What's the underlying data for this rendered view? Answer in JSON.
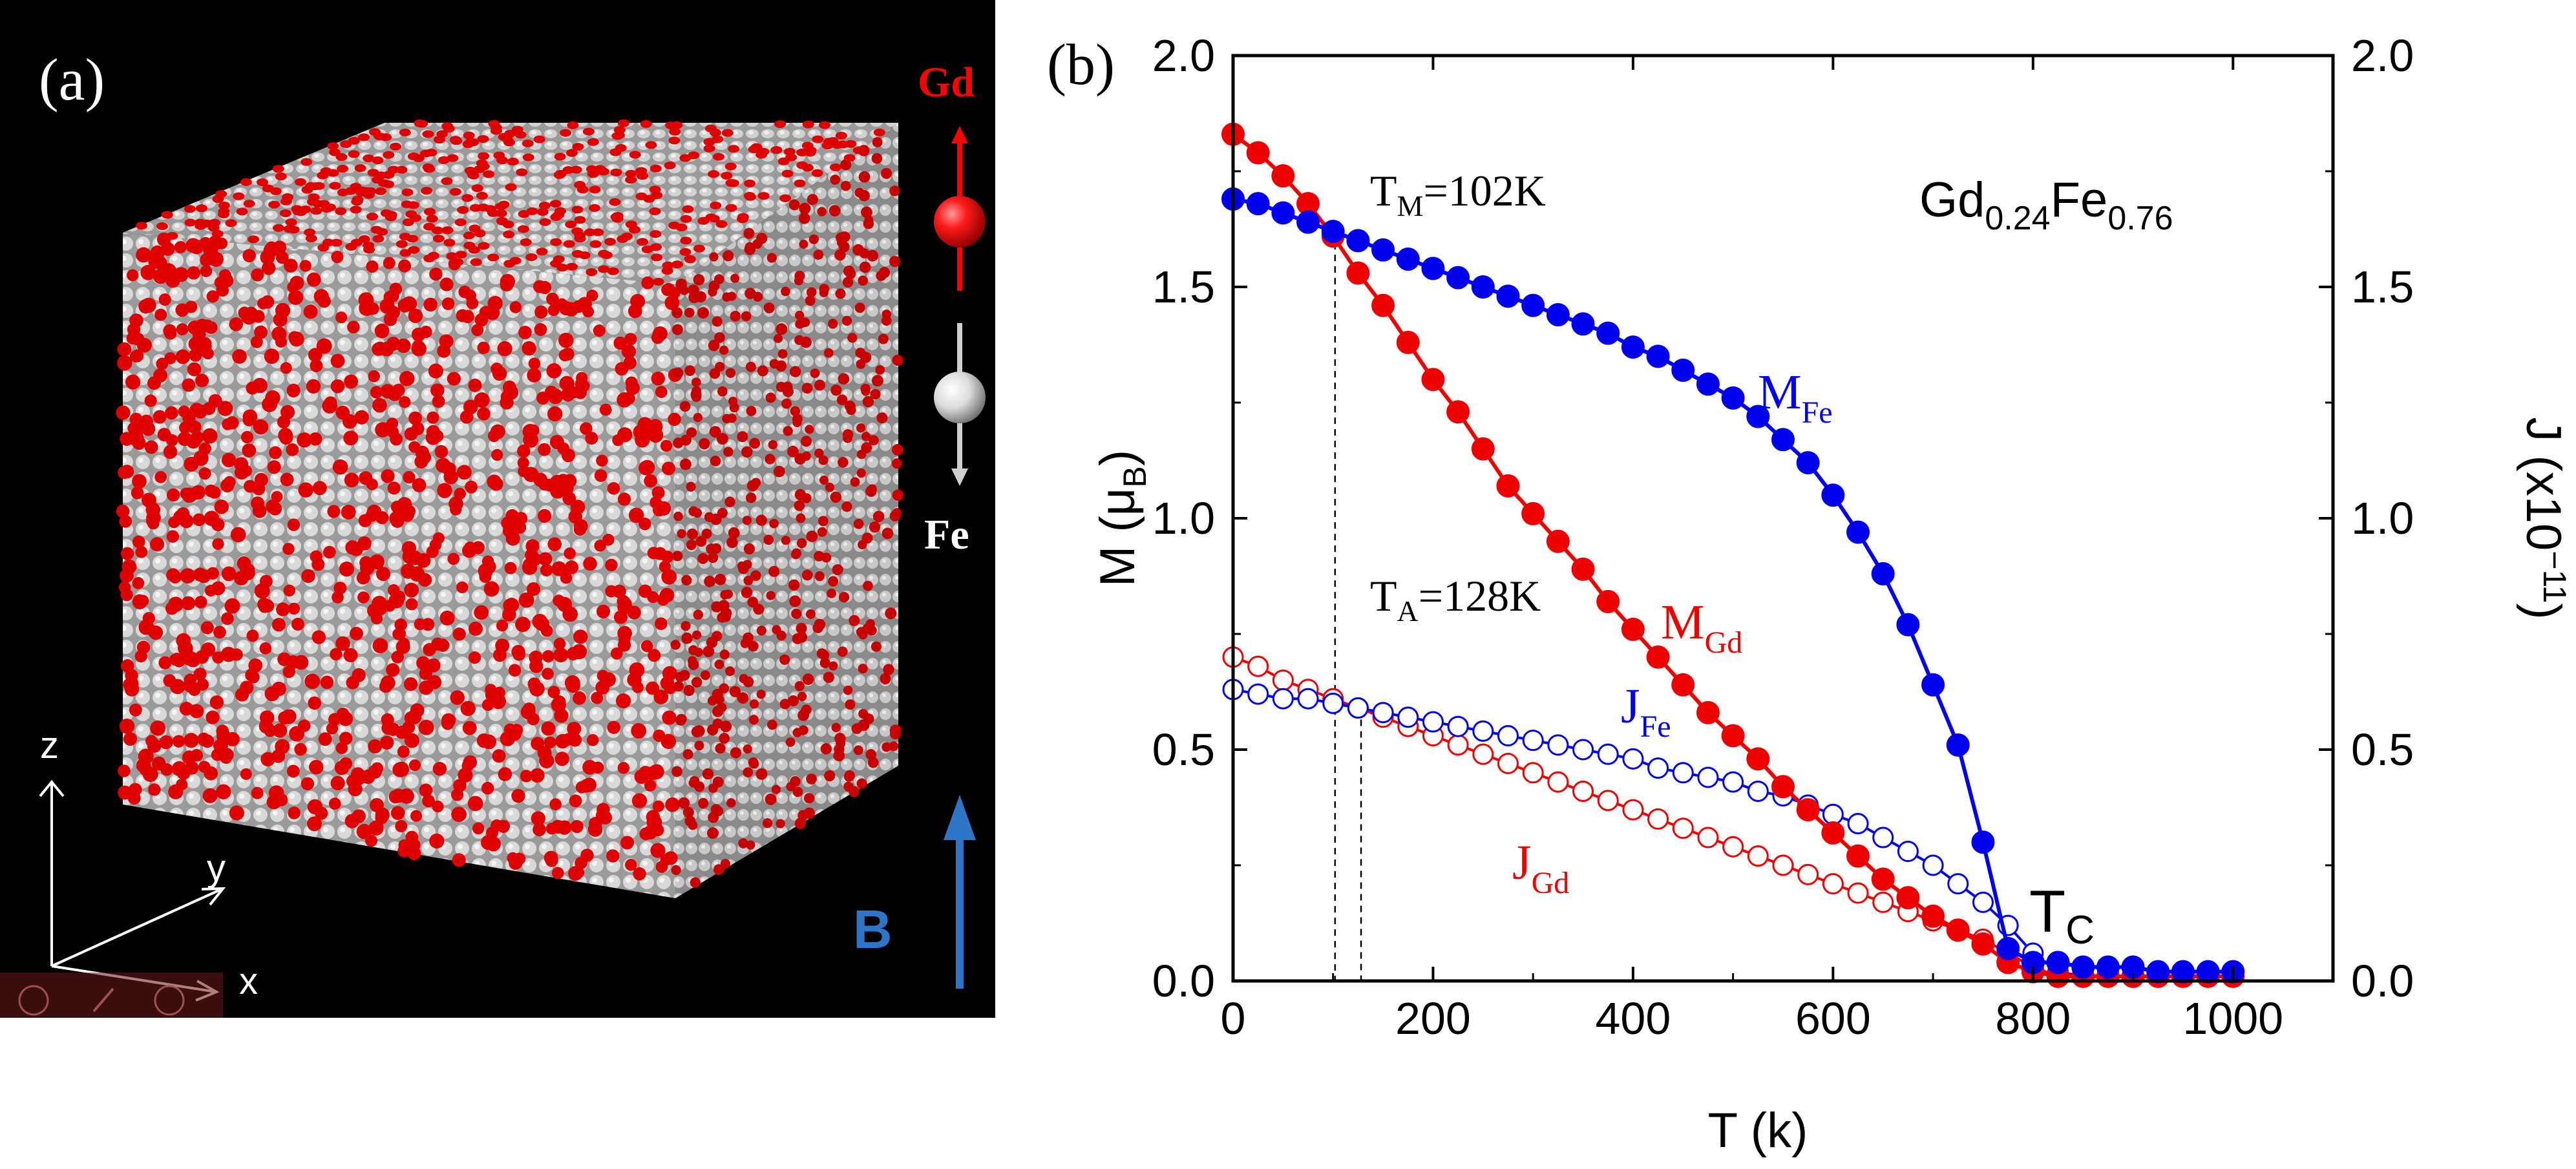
{
  "panel_a": {
    "label": "(a)",
    "gd_label": "Gd",
    "fe_label": "Fe",
    "field_label": "B",
    "axes": {
      "z": "z",
      "y": "y",
      "x": "x"
    },
    "colors": {
      "gd": "#e00000",
      "fe": "#d8d8d8",
      "field": "#2e75c8"
    }
  },
  "chart_data": {
    "type": "line",
    "panel_label": "(b)",
    "composition": {
      "base1": "Gd",
      "sub1": "0.24",
      "base2": "Fe",
      "sub2": "0.76"
    },
    "xlabel": "T (k)",
    "ylabel": {
      "main": "M (",
      "mu": "μ",
      "sub": "B",
      "close": ")"
    },
    "y2label": {
      "main": "J (x10",
      "sup": "−11",
      "close": ")"
    },
    "xlim": [
      0,
      1100
    ],
    "ylim": [
      0,
      2.0
    ],
    "y2lim": [
      0,
      2.0
    ],
    "xticks": [
      0,
      200,
      400,
      600,
      800,
      1000
    ],
    "yticks": [
      0.0,
      0.5,
      1.0,
      1.5,
      2.0
    ],
    "ytick_labels": [
      "0.0",
      "0.5",
      "1.0",
      "1.5",
      "2.0"
    ],
    "annotations": {
      "tm": {
        "base": "T",
        "sub": "M",
        "rest": "=102K",
        "x": 102
      },
      "ta": {
        "base": "T",
        "sub": "A",
        "rest": "=128K",
        "x": 128
      },
      "tc": {
        "base": "T",
        "sub": "C"
      }
    },
    "series": [
      {
        "name": "M_Fe",
        "label": "M",
        "sub": "Fe",
        "color": "#0000ee",
        "filled": true,
        "x": [
          0,
          25,
          50,
          75,
          100,
          125,
          150,
          175,
          200,
          225,
          250,
          275,
          300,
          325,
          350,
          375,
          400,
          425,
          450,
          475,
          500,
          525,
          550,
          575,
          600,
          625,
          650,
          675,
          700,
          725,
          750,
          775,
          800,
          825,
          850,
          875,
          900,
          925,
          950,
          975,
          1000
        ],
        "values": [
          1.69,
          1.68,
          1.66,
          1.64,
          1.62,
          1.6,
          1.58,
          1.56,
          1.54,
          1.52,
          1.5,
          1.48,
          1.46,
          1.44,
          1.42,
          1.4,
          1.37,
          1.35,
          1.32,
          1.29,
          1.26,
          1.22,
          1.17,
          1.12,
          1.05,
          0.97,
          0.88,
          0.77,
          0.64,
          0.51,
          0.3,
          0.07,
          0.04,
          0.04,
          0.03,
          0.03,
          0.03,
          0.02,
          0.02,
          0.02,
          0.02
        ]
      },
      {
        "name": "M_Gd",
        "label": "M",
        "sub": "Gd",
        "color": "#ee0000",
        "filled": true,
        "x": [
          0,
          25,
          50,
          75,
          100,
          125,
          150,
          175,
          200,
          225,
          250,
          275,
          300,
          325,
          350,
          375,
          400,
          425,
          450,
          475,
          500,
          525,
          550,
          575,
          600,
          625,
          650,
          675,
          700,
          725,
          750,
          775,
          800,
          825,
          850,
          875,
          900,
          925,
          950,
          975,
          1000
        ],
        "values": [
          1.83,
          1.79,
          1.74,
          1.68,
          1.61,
          1.53,
          1.46,
          1.38,
          1.3,
          1.23,
          1.15,
          1.07,
          1.01,
          0.95,
          0.89,
          0.82,
          0.76,
          0.7,
          0.64,
          0.58,
          0.53,
          0.48,
          0.42,
          0.37,
          0.32,
          0.27,
          0.22,
          0.18,
          0.14,
          0.11,
          0.08,
          0.04,
          0.02,
          0.01,
          0.01,
          0.01,
          0.01,
          0.01,
          0.01,
          0.01,
          0.01
        ]
      },
      {
        "name": "J_Fe",
        "label": "J",
        "sub": "Fe",
        "color": "#0000ee",
        "filled": false,
        "x": [
          0,
          25,
          50,
          75,
          100,
          125,
          150,
          175,
          200,
          225,
          250,
          275,
          300,
          325,
          350,
          375,
          400,
          425,
          450,
          475,
          500,
          525,
          550,
          575,
          600,
          625,
          650,
          675,
          700,
          725,
          750,
          775,
          800,
          825,
          850,
          875,
          900,
          925,
          950,
          975,
          1000
        ],
        "values": [
          0.63,
          0.62,
          0.61,
          0.61,
          0.6,
          0.59,
          0.58,
          0.57,
          0.56,
          0.55,
          0.54,
          0.53,
          0.52,
          0.51,
          0.5,
          0.49,
          0.48,
          0.46,
          0.45,
          0.44,
          0.43,
          0.41,
          0.4,
          0.38,
          0.36,
          0.34,
          0.31,
          0.28,
          0.25,
          0.21,
          0.17,
          0.12,
          0.06,
          0.02,
          0.01,
          0.01,
          0.01,
          0.01,
          0.01,
          0.01,
          0.01
        ]
      },
      {
        "name": "J_Gd",
        "label": "J",
        "sub": "Gd",
        "color": "#ee0000",
        "filled": false,
        "x": [
          0,
          25,
          50,
          75,
          100,
          125,
          150,
          175,
          200,
          225,
          250,
          275,
          300,
          325,
          350,
          375,
          400,
          425,
          450,
          475,
          500,
          525,
          550,
          575,
          600,
          625,
          650,
          675,
          700,
          725,
          750,
          775,
          800,
          825,
          850,
          875,
          900,
          925,
          950,
          975,
          1000
        ],
        "values": [
          0.7,
          0.68,
          0.65,
          0.63,
          0.61,
          0.59,
          0.57,
          0.55,
          0.53,
          0.51,
          0.49,
          0.47,
          0.45,
          0.43,
          0.41,
          0.39,
          0.37,
          0.35,
          0.33,
          0.31,
          0.29,
          0.27,
          0.25,
          0.23,
          0.21,
          0.19,
          0.17,
          0.15,
          0.13,
          0.11,
          0.09,
          0.06,
          0.03,
          0.01,
          0.01,
          0.01,
          0.01,
          0.01,
          0.01,
          0.01,
          0.01
        ]
      }
    ]
  }
}
